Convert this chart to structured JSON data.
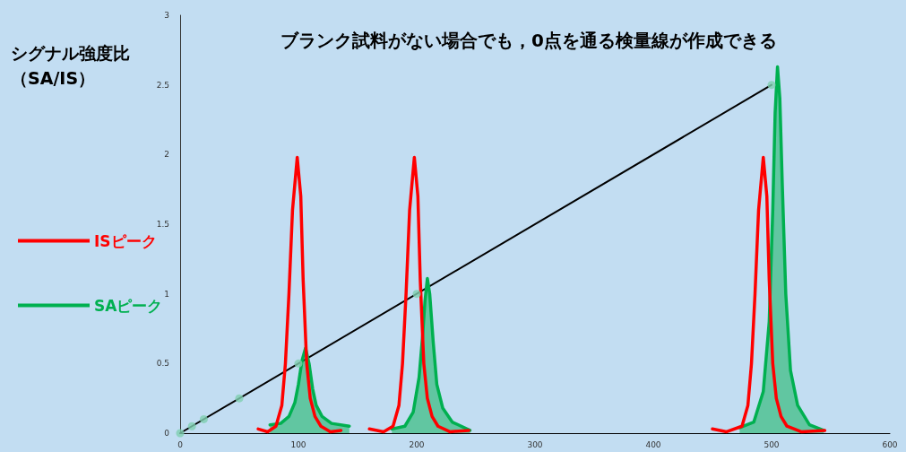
{
  "chart_data": {
    "type": "line",
    "title": "ブランク試料がない場合でも，0点を通る検量線が作成できる",
    "ylabel": "シグナル強度比（SA/IS）",
    "xlim": [
      0,
      600
    ],
    "xticks": [
      0,
      100,
      200,
      300,
      400,
      500,
      600
    ],
    "ylim": [
      0,
      3
    ],
    "yticks": [
      0,
      0.5,
      1,
      1.5,
      2,
      2.5,
      3
    ],
    "grid": false,
    "legend": "left",
    "series": [
      {
        "color": "#000000",
        "marker": "none",
        "x": [
          0,
          500
        ],
        "values": [
          0,
          2.5
        ]
      },
      {
        "type": "scatter",
        "color": "#7fcfb0",
        "marker": "circle",
        "x": [
          0,
          10,
          20,
          50,
          100,
          200,
          500
        ],
        "values": [
          0,
          0.05,
          0.1,
          0.25,
          0.5,
          1,
          2.5
        ]
      },
      {
        "name": "ISピーク",
        "color": "#ff0000",
        "marker": "none",
        "x": [
          66,
          74,
          81,
          86,
          89,
          92,
          95,
          99,
          102,
          104,
          107,
          110,
          114,
          119,
          127,
          136,
          150,
          160,
          172,
          180,
          185,
          188,
          191,
          194,
          198,
          201,
          203,
          206,
          209,
          213,
          218,
          228,
          244,
          350,
          450,
          462,
          475,
          480,
          483,
          486,
          489,
          493,
          496,
          498,
          501,
          504,
          508,
          513,
          525,
          545
        ],
        "values": [
          0.03,
          0.01,
          0.05,
          0.2,
          0.5,
          1.0,
          1.6,
          1.98,
          1.7,
          1.1,
          0.5,
          0.25,
          0.12,
          0.05,
          0.01,
          0.02,
          null,
          0.03,
          0.01,
          0.05,
          0.2,
          0.5,
          1.0,
          1.6,
          1.98,
          1.7,
          1.1,
          0.5,
          0.25,
          0.12,
          0.05,
          0.01,
          0.02,
          null,
          0.03,
          0.01,
          0.05,
          0.2,
          0.5,
          1.0,
          1.6,
          1.98,
          1.7,
          1.1,
          0.5,
          0.25,
          0.12,
          0.05,
          0.01,
          0.02
        ]
      },
      {
        "type": "area",
        "name": "SAピーク",
        "color": "#00b050",
        "marker": "none",
        "x": [
          76,
          85,
          92,
          97,
          100,
          103,
          106,
          109,
          112,
          115,
          120,
          128,
          143,
          160,
          179,
          190,
          197,
          202,
          205,
          207,
          209,
          211,
          214,
          217,
          222,
          230,
          245,
          350,
          473,
          485,
          493,
          498,
          501,
          503,
          505,
          507,
          509,
          512,
          516,
          522,
          532,
          544
        ],
        "values": [
          0.06,
          0.07,
          0.12,
          0.22,
          0.35,
          0.52,
          0.61,
          0.5,
          0.32,
          0.2,
          0.12,
          0.07,
          0.05,
          null,
          0.03,
          0.05,
          0.15,
          0.4,
          0.7,
          0.95,
          1.11,
          1.0,
          0.65,
          0.35,
          0.18,
          0.08,
          0.02,
          null,
          0.04,
          0.08,
          0.3,
          0.8,
          1.6,
          2.3,
          2.63,
          2.4,
          1.8,
          1.0,
          0.45,
          0.2,
          0.06,
          0.02
        ]
      }
    ]
  }
}
